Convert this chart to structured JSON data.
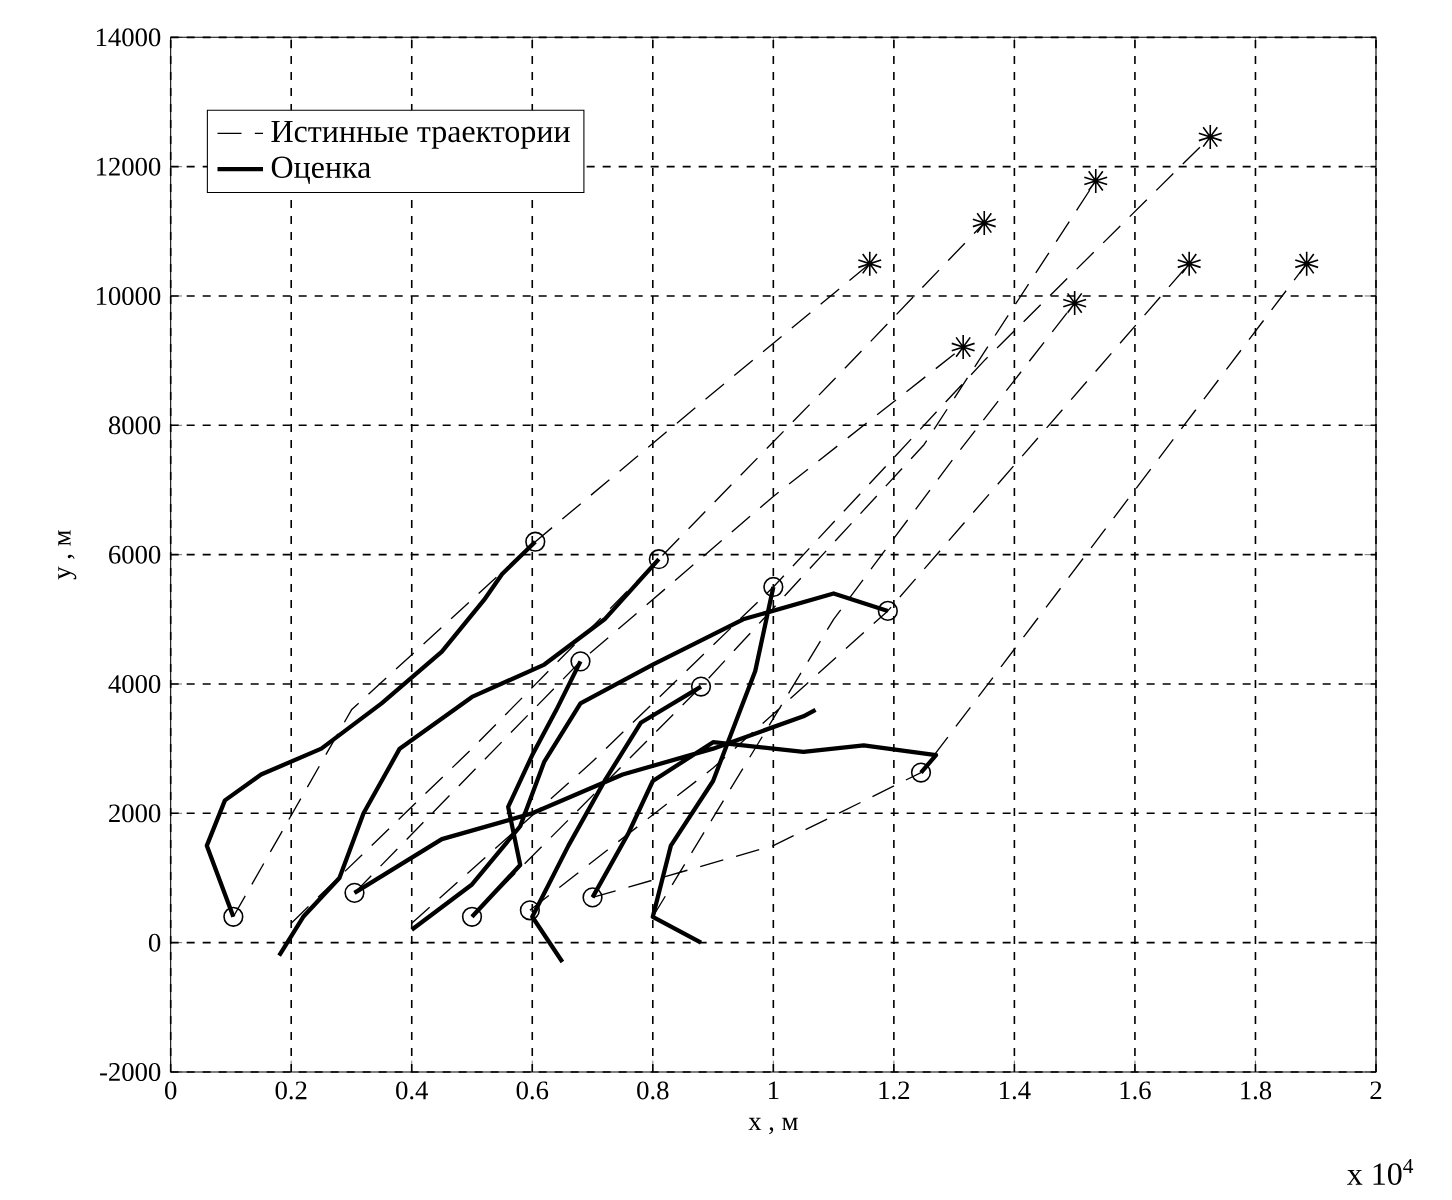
{
  "chart_data": {
    "type": "line",
    "xlabel": "x , м",
    "ylabel": "y , м",
    "xlim": [
      0,
      2
    ],
    "xticks": [
      0,
      0.2,
      0.4,
      0.6,
      0.8,
      1,
      1.2,
      1.4,
      1.6,
      1.8,
      2
    ],
    "ylim": [
      -2000,
      14000
    ],
    "yticks": [
      -2000,
      0,
      2000,
      4000,
      6000,
      8000,
      10000,
      12000,
      14000
    ],
    "grid": true,
    "legend": "top left",
    "annotations": [
      "x 10$^{4}$"
    ],
    "series": [
      {
        "name": "Истинные траектории",
        "color": "#000000",
        "line_style": "dashed",
        "marker": "none",
        "x": [
          0.104,
          0.3,
          0.605,
          0.9,
          1.16,
          null,
          0.2,
          0.5,
          0.81,
          1.1,
          1.35,
          null,
          0.305,
          0.68,
          1.0,
          1.315,
          null,
          0.4,
          0.7,
          1.0,
          1.35,
          1.725,
          null,
          0.5,
          0.88,
          1.25,
          1.535,
          null,
          0.596,
          0.9,
          1.19,
          1.69,
          null,
          0.7,
          1.0,
          1.245,
          1.6,
          1.885,
          null,
          0.8,
          1.1,
          1.3,
          1.5
        ],
        "values": [
          400,
          3600,
          6200,
          8500,
          10500,
          null,
          300,
          3000,
          5930,
          8700,
          11130,
          null,
          770,
          4350,
          6900,
          9210,
          null,
          300,
          2800,
          5500,
          9000,
          12460,
          null,
          400,
          3960,
          7700,
          11780,
          null,
          500,
          2700,
          5130,
          10500,
          null,
          700,
          1500,
          2630,
          7000,
          10500,
          null,
          400,
          5000,
          7500,
          9890
        ]
      },
      {
        "name": "Оценка",
        "color": "#000000",
        "line_style": "solid",
        "marker": "none",
        "x": [
          0.104,
          0.08,
          0.06,
          0.09,
          0.15,
          0.25,
          0.35,
          0.45,
          0.52,
          0.55,
          0.605,
          null,
          0.18,
          0.22,
          0.28,
          0.32,
          0.38,
          0.5,
          0.62,
          0.72,
          0.81,
          null,
          0.305,
          0.45,
          0.6,
          0.75,
          0.9,
          1.05,
          1.07,
          null,
          0.4,
          0.5,
          0.58,
          0.62,
          0.68,
          0.8,
          0.95,
          1.1,
          1.19,
          null,
          0.5,
          0.58,
          0.56,
          0.6,
          0.64,
          0.68,
          null,
          0.65,
          0.6,
          0.66,
          0.72,
          0.78,
          0.88,
          null,
          0.7,
          0.76,
          0.8,
          0.9,
          1.05,
          1.15,
          1.27,
          1.245,
          null,
          0.88,
          0.8,
          0.83,
          0.9,
          0.97,
          1.0
        ],
        "values": [
          400,
          1000,
          1500,
          2200,
          2600,
          3000,
          3700,
          4500,
          5300,
          5700,
          6200,
          null,
          -200,
          400,
          1000,
          2000,
          3000,
          3800,
          4300,
          5000,
          5930,
          null,
          770,
          1600,
          2000,
          2600,
          3000,
          3500,
          3600,
          null,
          200,
          900,
          1800,
          2800,
          3700,
          4300,
          5000,
          5400,
          5130,
          null,
          400,
          1200,
          2100,
          2900,
          3600,
          4350,
          null,
          -300,
          400,
          1500,
          2500,
          3400,
          3960,
          null,
          700,
          1700,
          2500,
          3100,
          2950,
          3050,
          2900,
          2630,
          null,
          0,
          400,
          1500,
          2500,
          4200,
          5500
        ]
      },
      {
        "color": "#000000",
        "type": "scatter",
        "marker": "circle",
        "x": [
          0.104,
          0.305,
          0.5,
          0.596,
          0.7,
          0.605,
          0.81,
          1.0,
          1.19,
          0.68,
          0.88,
          1.245
        ],
        "values": [
          400,
          770,
          400,
          500,
          700,
          6200,
          5930,
          5500,
          5130,
          4350,
          3960,
          2630
        ]
      },
      {
        "color": "#000000",
        "type": "scatter",
        "marker": "cross",
        "x": [
          1.16,
          1.315,
          1.35,
          1.5,
          1.535,
          1.69,
          1.725,
          1.885
        ],
        "values": [
          10500,
          9210,
          11130,
          9890,
          11780,
          10500,
          12460,
          10500
        ]
      }
    ]
  }
}
